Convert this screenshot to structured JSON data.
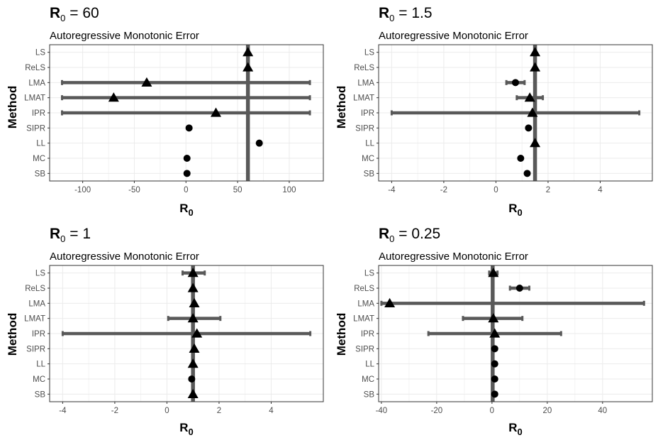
{
  "chart_data": [
    {
      "type": "errorbar",
      "title_main": "R",
      "title_sub": "0",
      "title_value": " = 60",
      "subtitle": "Autoregressive Monotonic Error",
      "xlabel_main": "R",
      "xlabel_sub": "0",
      "ylabel": "Method",
      "xlim": [
        -132,
        133
      ],
      "xticks": [
        -100,
        -50,
        0,
        50,
        100
      ],
      "xtick_labels": [
        "-100",
        "-50",
        "0",
        "50",
        "100"
      ],
      "true_value": 60,
      "categories": [
        "LS",
        "ReLS",
        "LMA",
        "LMAT",
        "IPR",
        "SIPR",
        "LL",
        "MC",
        "SB"
      ],
      "estimates": [
        60,
        60,
        -38,
        -70,
        29,
        3,
        71,
        1,
        1
      ],
      "lower": [
        null,
        null,
        -120,
        -120,
        -120,
        null,
        null,
        null,
        null
      ],
      "upper": [
        null,
        null,
        120,
        120,
        120,
        null,
        null,
        null,
        null
      ],
      "markers": [
        "triangle",
        "triangle",
        "triangle",
        "triangle",
        "triangle",
        "circle",
        "circle",
        "circle",
        "circle"
      ]
    },
    {
      "type": "errorbar",
      "title_main": "R",
      "title_sub": "0",
      "title_value": " = 1.5",
      "subtitle": "Autoregressive Monotonic Error",
      "xlabel_main": "R",
      "xlabel_sub": "0",
      "ylabel": "Method",
      "xlim": [
        -4.5,
        6.0
      ],
      "xticks": [
        -4,
        -2,
        0,
        2,
        4
      ],
      "xtick_labels": [
        "-4",
        "-2",
        "0",
        "2",
        "4"
      ],
      "true_value": 1.5,
      "categories": [
        "LS",
        "ReLS",
        "LMA",
        "LMAT",
        "IPR",
        "SIPR",
        "LL",
        "MC",
        "SB"
      ],
      "estimates": [
        1.5,
        1.5,
        0.75,
        1.3,
        1.4,
        1.25,
        1.5,
        0.95,
        1.2
      ],
      "lower": [
        null,
        null,
        0.4,
        0.8,
        -4.0,
        null,
        null,
        null,
        null
      ],
      "upper": [
        null,
        null,
        1.1,
        1.8,
        5.5,
        null,
        null,
        null,
        null
      ],
      "markers": [
        "triangle",
        "triangle",
        "circle",
        "triangle",
        "triangle",
        "circle",
        "triangle",
        "circle",
        "circle"
      ]
    },
    {
      "type": "errorbar",
      "title_main": "R",
      "title_sub": "0",
      "title_value": " = 1",
      "subtitle": "Autoregressive Monotonic Error",
      "xlabel_main": "R",
      "xlabel_sub": "0",
      "ylabel": "Method",
      "xlim": [
        -4.5,
        6.0
      ],
      "xticks": [
        -4,
        -2,
        0,
        2,
        4
      ],
      "xtick_labels": [
        "-4",
        "-2",
        "0",
        "2",
        "4"
      ],
      "true_value": 1,
      "categories": [
        "LS",
        "ReLS",
        "LMA",
        "LMAT",
        "IPR",
        "SIPR",
        "LL",
        "MC",
        "SB"
      ],
      "estimates": [
        1.0,
        1.0,
        1.05,
        1.0,
        1.15,
        1.05,
        1.0,
        0.95,
        1.0
      ],
      "lower": [
        0.6,
        null,
        null,
        0.05,
        -4.0,
        null,
        null,
        null,
        null
      ],
      "upper": [
        1.45,
        null,
        null,
        2.05,
        5.5,
        null,
        null,
        null,
        null
      ],
      "markers": [
        "triangle",
        "triangle",
        "triangle",
        "triangle",
        "triangle",
        "triangle",
        "triangle",
        "circle",
        "triangle"
      ]
    },
    {
      "type": "errorbar",
      "title_main": "R",
      "title_sub": "0",
      "title_value": " = 0.25",
      "subtitle": "Autoregressive Monotonic Error",
      "xlabel_main": "R",
      "xlabel_sub": "0",
      "ylabel": "Method",
      "xlim": [
        -41,
        58
      ],
      "xticks": [
        -40,
        -20,
        0,
        20,
        40
      ],
      "xtick_labels": [
        "-40",
        "-20",
        "0",
        "20",
        "40"
      ],
      "true_value": 0.25,
      "categories": [
        "LS",
        "ReLS",
        "LMA",
        "LMAT",
        "IPR",
        "SIPR",
        "LL",
        "MC",
        "SB"
      ],
      "estimates": [
        0.5,
        10,
        -37,
        0.5,
        1.0,
        1.0,
        1.0,
        1.0,
        1.0
      ],
      "lower": [
        -1,
        6.5,
        -40,
        -10.5,
        -23,
        null,
        null,
        null,
        null
      ],
      "upper": [
        2,
        13.5,
        55,
        11,
        25,
        null,
        null,
        null,
        null
      ],
      "markers": [
        "triangle",
        "circle",
        "triangle",
        "triangle",
        "triangle",
        "circle",
        "circle",
        "circle",
        "circle"
      ]
    }
  ]
}
